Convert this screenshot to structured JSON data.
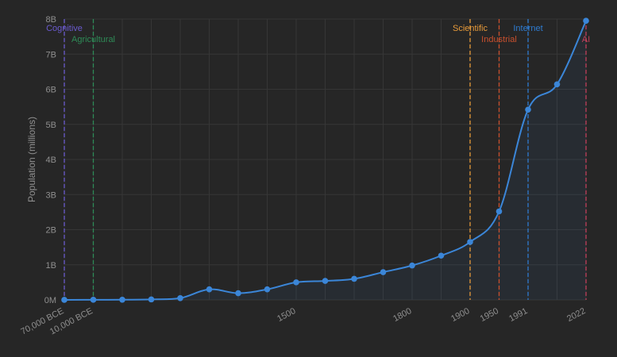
{
  "chart_data": {
    "type": "line",
    "title": "",
    "xlabel": "",
    "ylabel": "Population (millions)",
    "ylim": [
      0,
      8000
    ],
    "y_ticks": [
      "0M",
      "1B",
      "2B",
      "3B",
      "4B",
      "5B",
      "6B",
      "7B",
      "8B"
    ],
    "x_tick_labels": [
      "70,000 BCE",
      "10,000 BCE",
      "1500",
      "1800",
      "1900",
      "1950",
      "1991",
      "2022"
    ],
    "series": [
      {
        "color": "#3b86d8",
        "values": [
          {
            "x_index": 0,
            "y": 1
          },
          {
            "x_index": 1,
            "y": 4
          },
          {
            "x_index": 2,
            "y": 5
          },
          {
            "x_index": 3,
            "y": 14
          },
          {
            "x_index": 4,
            "y": 50
          },
          {
            "x_index": 5,
            "y": 300
          },
          {
            "x_index": 6,
            "y": 190
          },
          {
            "x_index": 7,
            "y": 300
          },
          {
            "x_index": 8,
            "y": 500
          },
          {
            "x_index": 9,
            "y": 540
          },
          {
            "x_index": 10,
            "y": 600
          },
          {
            "x_index": 11,
            "y": 790
          },
          {
            "x_index": 12,
            "y": 980
          },
          {
            "x_index": 13,
            "y": 1260
          },
          {
            "x_index": 14,
            "y": 1650
          },
          {
            "x_index": 15,
            "y": 2520
          },
          {
            "x_index": 16,
            "y": 5420
          },
          {
            "x_index": 17,
            "y": 6140
          },
          {
            "x_index": 18,
            "y": 7950
          }
        ]
      }
    ],
    "x_tick_positions": [
      {
        "label": "70,000 BCE",
        "x_index": 0
      },
      {
        "label": "10,000 BCE",
        "x_index": 1
      },
      {
        "label": "1500",
        "x_index": 8
      },
      {
        "label": "1800",
        "x_index": 12
      },
      {
        "label": "1900",
        "x_index": 14
      },
      {
        "label": "1950",
        "x_index": 15
      },
      {
        "label": "1991",
        "x_index": 16
      },
      {
        "label": "2022",
        "x_index": 18
      }
    ],
    "revolutions": [
      {
        "label": "Cognitive",
        "x_index": 0,
        "color": "#6a5acd",
        "row": 0
      },
      {
        "label": "Agricultural",
        "x_index": 1,
        "color": "#2e8b57",
        "row": 1
      },
      {
        "label": "Scientific",
        "x_index": 14,
        "color": "#e69a3a",
        "row": 0
      },
      {
        "label": "Industrial",
        "x_index": 15,
        "color": "#c8502e",
        "row": 1
      },
      {
        "label": "Internet",
        "x_index": 16,
        "color": "#2e7bd0",
        "row": 0
      },
      {
        "label": "AI",
        "x_index": 18,
        "color": "#c0405a",
        "row": 1
      }
    ],
    "grid": true,
    "legend": "none"
  }
}
